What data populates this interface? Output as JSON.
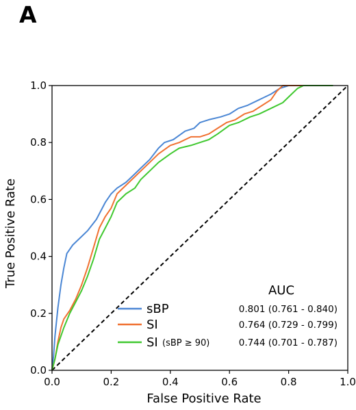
{
  "panel_label": "A",
  "chart_data": {
    "type": "line",
    "xlabel": "False Positive Rate",
    "ylabel": "True Positive Rate",
    "xlim": [
      0.0,
      1.0
    ],
    "ylim": [
      0.0,
      1.0
    ],
    "x_ticks": [
      "0.0",
      "0.2",
      "0.4",
      "0.6",
      "0.8",
      "1.0"
    ],
    "y_ticks": [
      "0.0",
      "0.2",
      "0.4",
      "0.6",
      "0.8",
      "1.0"
    ],
    "grid": false,
    "legend_placement": "bottom-right",
    "auc_header": "AUC",
    "diagonal": {
      "style": "dashed",
      "color": "#000000",
      "points": [
        [
          0,
          0
        ],
        [
          1,
          1
        ]
      ]
    },
    "series": [
      {
        "name": "sBP",
        "name_suffix": "",
        "auc": "0.801 (0.761 - 0.840)",
        "color": "#4a86d4",
        "points": [
          [
            0,
            0
          ],
          [
            0.005,
            0.05
          ],
          [
            0.01,
            0.12
          ],
          [
            0.02,
            0.22
          ],
          [
            0.03,
            0.3
          ],
          [
            0.04,
            0.36
          ],
          [
            0.05,
            0.41
          ],
          [
            0.07,
            0.44
          ],
          [
            0.09,
            0.46
          ],
          [
            0.12,
            0.49
          ],
          [
            0.15,
            0.53
          ],
          [
            0.18,
            0.59
          ],
          [
            0.2,
            0.62
          ],
          [
            0.22,
            0.64
          ],
          [
            0.25,
            0.66
          ],
          [
            0.28,
            0.69
          ],
          [
            0.3,
            0.71
          ],
          [
            0.33,
            0.74
          ],
          [
            0.36,
            0.78
          ],
          [
            0.38,
            0.8
          ],
          [
            0.41,
            0.81
          ],
          [
            0.45,
            0.84
          ],
          [
            0.48,
            0.85
          ],
          [
            0.5,
            0.87
          ],
          [
            0.53,
            0.88
          ],
          [
            0.57,
            0.89
          ],
          [
            0.6,
            0.9
          ],
          [
            0.63,
            0.92
          ],
          [
            0.66,
            0.93
          ],
          [
            0.7,
            0.95
          ],
          [
            0.74,
            0.97
          ],
          [
            0.77,
            0.99
          ],
          [
            0.8,
            1.0
          ],
          [
            0.95,
            1.0
          ]
        ]
      },
      {
        "name": "SI",
        "name_suffix": "",
        "auc": "0.764 (0.729 - 0.799)",
        "color": "#f07030",
        "points": [
          [
            0,
            0
          ],
          [
            0.01,
            0.04
          ],
          [
            0.02,
            0.1
          ],
          [
            0.03,
            0.15
          ],
          [
            0.04,
            0.18
          ],
          [
            0.06,
            0.21
          ],
          [
            0.08,
            0.25
          ],
          [
            0.1,
            0.3
          ],
          [
            0.12,
            0.36
          ],
          [
            0.14,
            0.43
          ],
          [
            0.16,
            0.5
          ],
          [
            0.18,
            0.54
          ],
          [
            0.2,
            0.57
          ],
          [
            0.22,
            0.62
          ],
          [
            0.25,
            0.65
          ],
          [
            0.28,
            0.68
          ],
          [
            0.3,
            0.7
          ],
          [
            0.33,
            0.73
          ],
          [
            0.36,
            0.76
          ],
          [
            0.4,
            0.79
          ],
          [
            0.43,
            0.8
          ],
          [
            0.47,
            0.82
          ],
          [
            0.5,
            0.82
          ],
          [
            0.53,
            0.83
          ],
          [
            0.56,
            0.85
          ],
          [
            0.59,
            0.87
          ],
          [
            0.62,
            0.88
          ],
          [
            0.65,
            0.9
          ],
          [
            0.68,
            0.91
          ],
          [
            0.71,
            0.93
          ],
          [
            0.74,
            0.95
          ],
          [
            0.76,
            0.98
          ],
          [
            0.78,
            1.0
          ],
          [
            0.92,
            1.0
          ]
        ]
      },
      {
        "name": "SI",
        "name_suffix": "(sBP ≥ 90)",
        "auc": "0.744 (0.701 - 0.787)",
        "color": "#3fc82e",
        "points": [
          [
            0,
            0
          ],
          [
            0.01,
            0.04
          ],
          [
            0.02,
            0.09
          ],
          [
            0.04,
            0.15
          ],
          [
            0.06,
            0.2
          ],
          [
            0.08,
            0.24
          ],
          [
            0.1,
            0.28
          ],
          [
            0.12,
            0.33
          ],
          [
            0.14,
            0.39
          ],
          [
            0.16,
            0.46
          ],
          [
            0.18,
            0.5
          ],
          [
            0.2,
            0.54
          ],
          [
            0.22,
            0.59
          ],
          [
            0.25,
            0.62
          ],
          [
            0.28,
            0.64
          ],
          [
            0.3,
            0.67
          ],
          [
            0.33,
            0.7
          ],
          [
            0.36,
            0.73
          ],
          [
            0.4,
            0.76
          ],
          [
            0.43,
            0.78
          ],
          [
            0.47,
            0.79
          ],
          [
            0.5,
            0.8
          ],
          [
            0.53,
            0.81
          ],
          [
            0.56,
            0.83
          ],
          [
            0.6,
            0.86
          ],
          [
            0.63,
            0.87
          ],
          [
            0.67,
            0.89
          ],
          [
            0.7,
            0.9
          ],
          [
            0.74,
            0.92
          ],
          [
            0.78,
            0.94
          ],
          [
            0.81,
            0.97
          ],
          [
            0.83,
            0.99
          ],
          [
            0.85,
            1.0
          ],
          [
            0.95,
            1.0
          ]
        ]
      }
    ]
  }
}
